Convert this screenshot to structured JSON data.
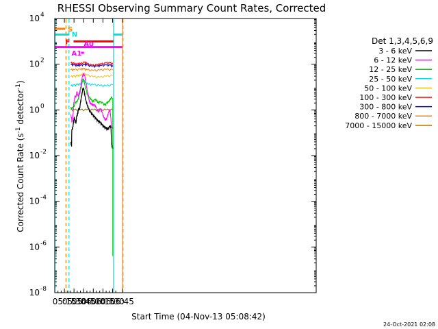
{
  "chart_data": {
    "type": "line",
    "title": "RHESSI Observing Summary Count Rates, Corrected",
    "xlabel": "Start Time (04-Nov-13 05:08:42)",
    "ylabel_main": "Corrected Count Rate (s",
    "ylabel_sup1": "-1",
    "ylabel_mid": " detector",
    "ylabel_sup2": "-1",
    "ylabel_end": ")",
    "yscale": "log",
    "xlim_min": [
      300,
      707
    ],
    "ylim_exp": [
      -8,
      4
    ],
    "x_ticks": [
      {
        "min": 315,
        "label": "05:15"
      },
      {
        "min": 330,
        "label": "05:30"
      },
      {
        "min": 345,
        "label": "05:45"
      },
      {
        "min": 360,
        "label": "06:00"
      },
      {
        "min": 375,
        "label": "06:15"
      },
      {
        "min": 390,
        "label": "06:30"
      },
      {
        "min": 405,
        "label": "06:45"
      }
    ],
    "y_ticks": [
      {
        "exp": 4,
        "label": "10",
        "sup": "4"
      },
      {
        "exp": 2,
        "label": "10",
        "sup": "2"
      },
      {
        "exp": 0,
        "label": "10",
        "sup": "0"
      },
      {
        "exp": -2,
        "label": "10",
        "sup": "-2"
      },
      {
        "exp": -4,
        "label": "10",
        "sup": "-4"
      },
      {
        "exp": -6,
        "label": "10",
        "sup": "-6"
      },
      {
        "exp": -8,
        "label": "10",
        "sup": "-8"
      }
    ],
    "legend_header": "Det 1,3,4,5,6,9",
    "legend_position": "right",
    "series": [
      {
        "name": "3 - 6 keV",
        "color": "#000000",
        "points": [
          [
            324.9,
            -1.4
          ],
          [
            326.2,
            -1.6
          ],
          [
            326.5,
            -0.9
          ],
          [
            328,
            -0.8
          ],
          [
            329,
            -0.6
          ],
          [
            330.3,
            -0.35
          ],
          [
            331.5,
            -0.45
          ],
          [
            333,
            -0.6
          ],
          [
            334,
            -0.3
          ],
          [
            335.5,
            -0.2
          ],
          [
            337,
            0.05
          ],
          [
            338.5,
            0
          ],
          [
            340,
            0.3
          ],
          [
            341.5,
            0.55
          ],
          [
            342.5,
            0.7
          ],
          [
            343.5,
            0.9
          ],
          [
            344.5,
            0.95
          ],
          [
            345.5,
            0.85
          ],
          [
            347,
            0.6
          ],
          [
            348.5,
            0.4
          ],
          [
            350.5,
            0.2
          ],
          [
            352.5,
            0.05
          ],
          [
            355.5,
            -0.1
          ],
          [
            358.5,
            -0.2
          ],
          [
            361.5,
            -0.3
          ],
          [
            364.5,
            -0.4
          ],
          [
            367.5,
            -0.5
          ],
          [
            370.5,
            -0.55
          ],
          [
            373.5,
            -0.65
          ],
          [
            376.5,
            -0.75
          ],
          [
            379.5,
            -0.8
          ],
          [
            382.5,
            -0.85
          ],
          [
            385.5,
            -0.75
          ],
          [
            386.5,
            -0.7
          ],
          [
            387.5,
            -0.8
          ],
          [
            388.3,
            -1.3
          ],
          [
            389,
            -1.6
          ],
          [
            390.5,
            -1.7
          ]
        ]
      },
      {
        "name": "6 - 12 keV",
        "color": "#ff00ff",
        "points": [
          [
            324.9,
            -0.2
          ],
          [
            326.3,
            -0.4
          ],
          [
            326.6,
            -0.55
          ],
          [
            328,
            -0.4
          ],
          [
            329.5,
            0.25
          ],
          [
            330.5,
            0.45
          ],
          [
            331.5,
            0.6
          ],
          [
            333,
            0.55
          ],
          [
            334.5,
            0.8
          ],
          [
            336,
            0.6
          ],
          [
            337.5,
            0.65
          ],
          [
            339.5,
            0.85
          ],
          [
            341.5,
            1.2
          ],
          [
            343,
            1.45
          ],
          [
            344.5,
            1.55
          ],
          [
            346.5,
            1.5
          ],
          [
            348.5,
            1.2
          ],
          [
            350.5,
            0.85
          ],
          [
            352.5,
            0.55
          ],
          [
            354.5,
            0.3
          ],
          [
            357,
            0.25
          ],
          [
            359.5,
            0.2
          ],
          [
            362.5,
            0.2
          ],
          [
            364.5,
            0.1
          ],
          [
            367.5,
            -0.1
          ],
          [
            371,
            0.05
          ],
          [
            373.5,
            -0.1
          ],
          [
            376.5,
            -0.35
          ],
          [
            379.5,
            -0.45
          ],
          [
            382,
            -0.3
          ],
          [
            384,
            -0.1
          ],
          [
            386,
            0
          ],
          [
            387,
            -0.3
          ],
          [
            388.3,
            -0.7
          ],
          [
            389.5,
            -0.8
          ],
          [
            390.5,
            -0.8
          ]
        ]
      },
      {
        "name": "12 - 25 keV",
        "color": "#00cc00",
        "points": [
          [
            324.9,
            0.1
          ],
          [
            326.3,
            0.05
          ],
          [
            330.3,
            0.15
          ],
          [
            331.5,
            0.3
          ],
          [
            334.5,
            0.35
          ],
          [
            336.5,
            0.45
          ],
          [
            338.5,
            0.65
          ],
          [
            340.5,
            0.9
          ],
          [
            342.5,
            1.15
          ],
          [
            344,
            1.35
          ],
          [
            345.5,
            1.3
          ],
          [
            347,
            1.05
          ],
          [
            349,
            0.85
          ],
          [
            351,
            0.65
          ],
          [
            353.5,
            0.55
          ],
          [
            356.5,
            0.45
          ],
          [
            359.5,
            0.35
          ],
          [
            362.5,
            0.45
          ],
          [
            365.5,
            0.4
          ],
          [
            367.5,
            0.3
          ],
          [
            370.5,
            0.35
          ],
          [
            374.5,
            0.3
          ],
          [
            378,
            0.2
          ],
          [
            381,
            0.3
          ],
          [
            384,
            0.35
          ],
          [
            386.5,
            0.45
          ],
          [
            388.3,
            0.55
          ],
          [
            390.5,
            0.45
          ]
        ]
      },
      {
        "name": "25 - 50 keV",
        "color": "#00e0e0",
        "points": [
          [
            324.9,
            1.05
          ],
          [
            330,
            1.08
          ],
          [
            335,
            1.1
          ],
          [
            340,
            1.12
          ],
          [
            343.5,
            1.22
          ],
          [
            345.5,
            1.27
          ],
          [
            347.5,
            1.2
          ],
          [
            352,
            1.12
          ],
          [
            360,
            1.1
          ],
          [
            370,
            1.07
          ],
          [
            380,
            1.05
          ],
          [
            390.5,
            1.1
          ]
        ]
      },
      {
        "name": "50 - 100 keV",
        "color": "#f0c020",
        "points": [
          [
            324.9,
            1.45
          ],
          [
            330,
            1.47
          ],
          [
            335,
            1.48
          ],
          [
            340,
            1.5
          ],
          [
            345,
            1.58
          ],
          [
            350,
            1.52
          ],
          [
            360,
            1.45
          ],
          [
            370,
            1.43
          ],
          [
            380,
            1.47
          ],
          [
            390.5,
            1.5
          ]
        ]
      },
      {
        "name": "100 - 300 keV",
        "color": "#ff0000",
        "points": [
          [
            324.9,
            2.05
          ],
          [
            330,
            2.03
          ],
          [
            336,
            2
          ],
          [
            340,
            2.02
          ],
          [
            346,
            2.08
          ],
          [
            350,
            2.03
          ],
          [
            358,
            1.95
          ],
          [
            366,
            1.97
          ],
          [
            372,
            2
          ],
          [
            380,
            2.05
          ],
          [
            386,
            2.05
          ],
          [
            390.5,
            2
          ]
        ]
      },
      {
        "name": "300 - 800 keV",
        "color": "#0000cc",
        "points": [
          [
            324.9,
            1.98
          ],
          [
            330,
            1.96
          ],
          [
            336,
            1.93
          ],
          [
            340,
            1.95
          ],
          [
            346,
            1.98
          ],
          [
            350,
            1.96
          ],
          [
            358,
            1.9
          ],
          [
            366,
            1.91
          ],
          [
            372,
            1.93
          ],
          [
            380,
            1.96
          ],
          [
            386,
            1.95
          ],
          [
            390.5,
            1.9
          ]
        ]
      },
      {
        "name": "800 - 7000 keV",
        "color": "#ff8000",
        "points": [
          [
            324.9,
            1.75
          ],
          [
            330,
            1.75
          ],
          [
            340,
            1.77
          ],
          [
            345,
            1.8
          ],
          [
            350,
            1.75
          ],
          [
            360,
            1.72
          ],
          [
            370,
            1.74
          ],
          [
            380,
            1.77
          ],
          [
            390.5,
            1.75
          ]
        ]
      },
      {
        "name": "7000 - 15000 keV",
        "color": "#a07000",
        "points": [
          [
            324.9,
            0
          ],
          [
            330,
            0
          ],
          [
            340,
            0
          ],
          [
            350,
            0
          ],
          [
            360,
            0
          ],
          [
            370,
            0
          ],
          [
            380,
            0
          ],
          [
            390.5,
            0
          ]
        ]
      }
    ],
    "state_bars": [
      {
        "label": "S",
        "color": "#ff8000",
        "x0": 300,
        "x1": 316,
        "exp": 3.55
      },
      {
        "label": "N",
        "color": "#00e0e0",
        "x0": 300,
        "x1": 322.2,
        "exp": 3.3
      },
      {
        "label": "N",
        "color": "#00e0e0",
        "x0": 391.5,
        "x1": 405,
        "exp": 3.3
      },
      {
        "label": "F",
        "color": "#ff0000",
        "x0": 329.2,
        "x1": 391.5,
        "exp": 3.0
      },
      {
        "label": "A0",
        "color": "#ff00ff",
        "x0": 300,
        "x1": 405,
        "exp": 2.75
      },
      {
        "label": "A1",
        "color": "#ff00ff",
        "x0": 341,
        "x1": 345.5,
        "exp": 2.5
      }
    ],
    "vlines": [
      {
        "x": 300.2,
        "color": "#00e0e0",
        "dashed": false
      },
      {
        "x": 317.4,
        "color": "#ff8000",
        "dashed": true
      },
      {
        "x": 322.2,
        "color": "#00e0e0",
        "dashed": true
      },
      {
        "x": 391.5,
        "color": "#00e0e0",
        "dashed": false
      },
      {
        "x": 405.7,
        "color": "#ff8000",
        "dashed": false
      },
      {
        "x": 406.3,
        "color": "#ff8000",
        "dashed": true
      }
    ],
    "timestamp": "24-Oct-2021 02:08"
  }
}
